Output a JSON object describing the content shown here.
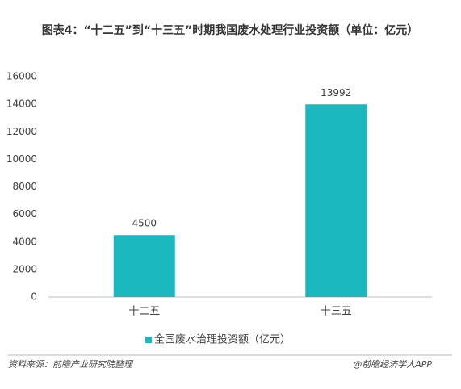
{
  "chart_data": {
    "type": "bar",
    "title": "图表4：“十二五”到“十三五”时期我国废水处理行业投资额（单位：亿元）",
    "categories": [
      "十二五",
      "十三五"
    ],
    "series": [
      {
        "name": "全国废水治理投资额（亿元）",
        "color": "#1bb8bf",
        "values": [
          4500,
          13992
        ]
      }
    ],
    "ylim": [
      0,
      16000
    ],
    "yticks": [
      0,
      2000,
      4000,
      6000,
      8000,
      10000,
      12000,
      14000,
      16000
    ],
    "grid": false,
    "legend": "bottom",
    "source": "资料来源：前瞻产业研究院整理",
    "credit": "@前瞻经济学人APP"
  }
}
